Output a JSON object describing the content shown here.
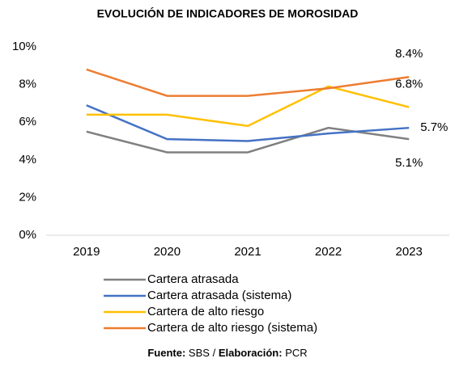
{
  "chart_data": {
    "type": "line",
    "title": "EVOLUCIÓN DE INDICADORES DE MOROSIDAD",
    "categories": [
      "2019",
      "2020",
      "2021",
      "2022",
      "2023"
    ],
    "series": [
      {
        "name": "Cartera atrasada",
        "color": "#808080",
        "values": [
          5.5,
          4.4,
          4.4,
          5.7,
          5.1
        ],
        "value_labels": [
          null,
          null,
          null,
          null,
          "5.1%"
        ]
      },
      {
        "name": "Cartera atrasada (sistema)",
        "color": "#4472c4",
        "values": [
          6.9,
          5.1,
          5.0,
          5.4,
          5.7
        ],
        "value_labels": [
          null,
          null,
          null,
          null,
          "5.7%"
        ]
      },
      {
        "name": "Cartera de alto riesgo",
        "color": "#ffc000",
        "values": [
          6.4,
          6.4,
          5.8,
          7.9,
          6.8
        ],
        "value_labels": [
          null,
          null,
          null,
          null,
          "6.8%"
        ]
      },
      {
        "name": "Cartera de alto riesgo (sistema)",
        "color": "#ed7d31",
        "values": [
          8.8,
          7.4,
          7.4,
          7.8,
          8.4
        ],
        "value_labels": [
          null,
          null,
          null,
          null,
          "8.4%"
        ]
      }
    ],
    "ylim": [
      0,
      10
    ],
    "yticks": [
      {
        "value": 0,
        "label": "0%"
      },
      {
        "value": 2,
        "label": "2%"
      },
      {
        "value": 4,
        "label": "4%"
      },
      {
        "value": 6,
        "label": "6%"
      },
      {
        "value": 8,
        "label": "8%"
      },
      {
        "value": 10,
        "label": "10%"
      }
    ],
    "grid": false,
    "legend": "bottom",
    "source_label": "Fuente:",
    "source": "SBS",
    "source_separator": "/",
    "credit_label": "Elaboración:",
    "credit": "PCR"
  }
}
